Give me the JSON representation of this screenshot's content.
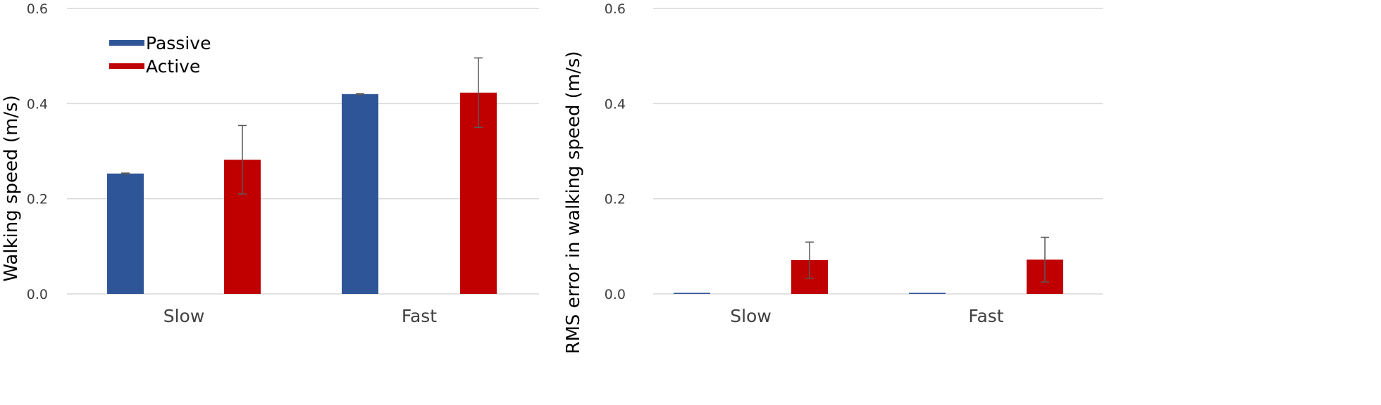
{
  "colors": {
    "passive": "#2E5597",
    "active": "#C00000",
    "grid": "#D9D9D9",
    "errbar": "#595959"
  },
  "chart_data": [
    {
      "type": "bar",
      "ylabel": "Walking speed (m/s)",
      "categories": [
        "Slow",
        "Fast"
      ],
      "ylim": [
        0,
        0.6
      ],
      "yticks": [
        "0.0",
        "0.2",
        "0.4",
        "0.6"
      ],
      "grid": true,
      "legend": {
        "placement": "top-left"
      },
      "series": [
        {
          "name": "Passive",
          "values": [
            0.253,
            0.42
          ],
          "errors": [
            0.001,
            0.001
          ]
        },
        {
          "name": "Active",
          "values": [
            0.282,
            0.423
          ],
          "errors": [
            0.072,
            0.073
          ]
        }
      ]
    },
    {
      "type": "bar",
      "ylabel": "RMS error in walking speed (m/s)",
      "categories": [
        "Slow",
        "Fast"
      ],
      "ylim": [
        0,
        0.6
      ],
      "yticks": [
        "0.0",
        "0.2",
        "0.4",
        "0.6"
      ],
      "grid": true,
      "series": [
        {
          "name": "Passive",
          "values": [
            0.001,
            0.001
          ],
          "errors": [
            0,
            0
          ]
        },
        {
          "name": "Active",
          "values": [
            0.071,
            0.072
          ],
          "errors": [
            0.038,
            0.047
          ]
        }
      ]
    }
  ]
}
